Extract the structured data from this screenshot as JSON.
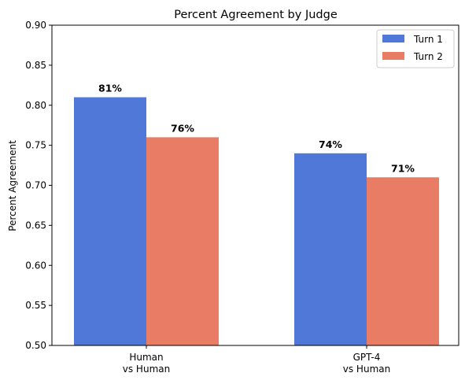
{
  "chart_data": {
    "type": "bar",
    "title": "Percent Agreement by Judge",
    "xlabel": "",
    "ylabel": "Percent Agreement",
    "categories": [
      [
        "Human",
        "vs Human"
      ],
      [
        "GPT-4",
        "vs Human"
      ]
    ],
    "series": [
      {
        "name": "Turn 1",
        "color": "#5078d9",
        "values": [
          0.81,
          0.74
        ],
        "labels": [
          "81%",
          "74%"
        ]
      },
      {
        "name": "Turn 2",
        "color": "#e97c64",
        "values": [
          0.76,
          0.71
        ],
        "labels": [
          "76%",
          "71%"
        ]
      }
    ],
    "ylim": [
      0.5,
      0.9
    ],
    "yticks": [
      "0.50",
      "0.55",
      "0.60",
      "0.65",
      "0.70",
      "0.75",
      "0.80",
      "0.85",
      "0.90"
    ],
    "grid": false,
    "legend_position": "top-right"
  }
}
